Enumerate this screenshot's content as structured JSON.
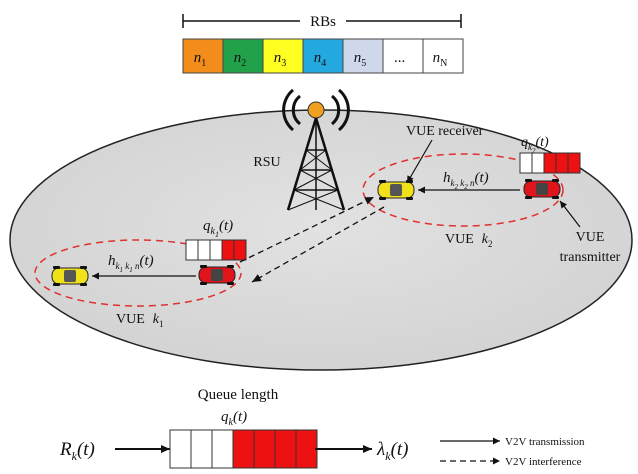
{
  "rb_bar": {
    "title": "RBs",
    "blocks": [
      {
        "label": "n",
        "sub": "1",
        "color": "#f28c1a"
      },
      {
        "label": "n",
        "sub": "2",
        "color": "#21a24a"
      },
      {
        "label": "n",
        "sub": "3",
        "color": "#ffff22"
      },
      {
        "label": "n",
        "sub": "4",
        "color": "#23a8e0"
      },
      {
        "label": "n",
        "sub": "5",
        "color": "#cfd8ea"
      },
      {
        "label": "...",
        "sub": "",
        "color": "#ffffff"
      },
      {
        "label": "n",
        "sub": "N",
        "color": "#ffffff"
      }
    ]
  },
  "rsu": {
    "label": "RSU"
  },
  "pair_k1": {
    "queue_label": "q",
    "queue_sub": "k",
    "queue_subsub": "1",
    "queue_arg": "(t)",
    "channel_label": "h",
    "channel_arg": "(t)",
    "name": "VUE",
    "name_sub": "k",
    "name_subsub": "1"
  },
  "pair_k2": {
    "queue_label": "q",
    "queue_sub": "k",
    "queue_subsub": "2",
    "queue_arg": "(t)",
    "channel_label": "h",
    "channel_arg": "(t)",
    "name": "VUE",
    "name_sub": "k",
    "name_subsub": "2",
    "receiver_label": "VUE receiver",
    "transmitter_label_1": "VUE",
    "transmitter_label_2": "transmitter"
  },
  "queue_bottom": {
    "title": "Queue length",
    "q_label": "q",
    "q_sub": "k",
    "q_arg": "(t)",
    "input_label": "R",
    "input_sub": "k",
    "input_arg": "(t)",
    "output_label": "λ",
    "output_sub": "k",
    "output_arg": "(t)",
    "cells": 6,
    "filled_cells": 4
  },
  "legend": {
    "transmission": "V2V  transmission",
    "interference": "V2V  interference"
  },
  "colors": {
    "cell_area": "#d7d7d7",
    "queue_red": "#ee1111",
    "car_red": "#e0141b",
    "car_yellow": "#f0e11a",
    "link_ellipse": "#e03030"
  }
}
